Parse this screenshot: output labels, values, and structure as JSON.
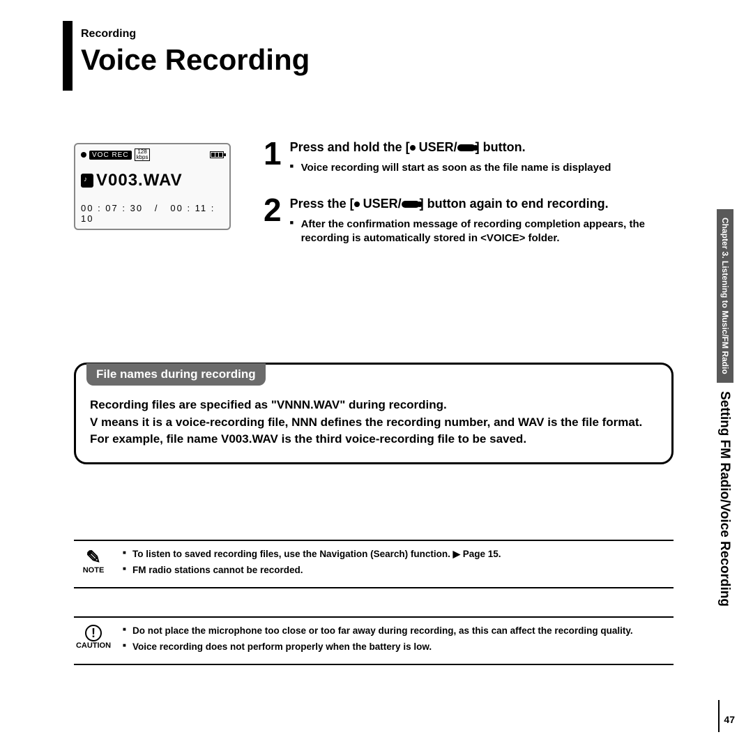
{
  "header": {
    "section_label": "Recording",
    "title": "Voice Recording"
  },
  "lcd": {
    "mode_label": "VOC REC",
    "bitrate_num": "128",
    "bitrate_unit": "kbps",
    "filename": "V003.WAV",
    "time_elapsed": "00 : 07 : 30",
    "time_separator": "/",
    "time_total": "00 : 11 : 10"
  },
  "steps": [
    {
      "num": "1",
      "pre": "Press and hold the  [",
      "mid": " USER/",
      "post": "]  button.",
      "subs": [
        "Voice recording will start as soon as the file name is displayed"
      ]
    },
    {
      "num": "2",
      "pre": "Press the  [",
      "mid": " USER/",
      "post": "]  button again to end recording.",
      "subs": [
        "After the confirmation message of recording completion appears, the recording is automatically stored in <VOICE> folder."
      ]
    }
  ],
  "info_box": {
    "tab": "File names during recording",
    "lines": [
      "Recording files are specified as \"VNNN.WAV\" during recording.",
      "V means it is a voice-recording file, NNN defines the recording number, and WAV is the file format.",
      "For example, file name V003.WAV is the third voice-recording file to be saved."
    ]
  },
  "note": {
    "label": "NOTE",
    "items": [
      "To listen to saved recording files, use the Navigation (Search) function.  ▶ Page 15.",
      "FM radio stations cannot be recorded."
    ]
  },
  "caution": {
    "label": "CAUTION",
    "items": [
      "Do not place the microphone too close or too far away during recording, as this can affect the recording quality.",
      "Voice recording does not perform properly when the battery is low."
    ]
  },
  "side": {
    "chapter": "Chapter 3.  Listening to Music/FM Radio",
    "topic": "Setting FM Radio/Voice Recording"
  },
  "page_number": "47",
  "colors": {
    "tab_bg": "#6b6b6b",
    "side_dark_bg": "#595959",
    "text": "#000000",
    "page_bg": "#ffffff"
  }
}
